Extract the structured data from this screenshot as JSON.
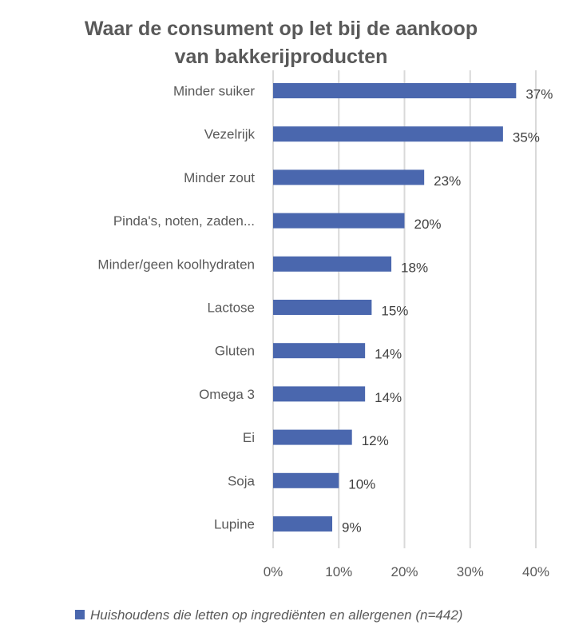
{
  "chart_data": {
    "type": "bar",
    "orientation": "horizontal",
    "title": "Waar de consument op let bij de aankoop van bakkerijproducten",
    "title_lines": [
      "Waar de consument op let bij de aankoop",
      "van bakkerijproducten"
    ],
    "categories": [
      "Minder suiker",
      "Vezelrijk",
      "Minder zout",
      "Pinda's, noten, zaden...",
      "Minder/geen koolhydraten",
      "Lactose",
      "Gluten",
      "Omega 3",
      "Ei",
      "Soja",
      "Lupine"
    ],
    "series": [
      {
        "name": "Huishoudens die letten op ingrediënten en allergenen (n=442)",
        "values": [
          37,
          35,
          23,
          20,
          18,
          15,
          14,
          14,
          12,
          10,
          9
        ],
        "labels": [
          "37%",
          "35%",
          "23%",
          "20%",
          "18%",
          "15%",
          "14%",
          "14%",
          "12%",
          "10%",
          "9%"
        ],
        "color": "#4a67ae"
      }
    ],
    "xlim": [
      0,
      40
    ],
    "xticks": [
      "0%",
      "10%",
      "20%",
      "30%",
      "40%"
    ],
    "grid": "vertical",
    "legend": "bottom",
    "xlabel": "",
    "ylabel": ""
  }
}
